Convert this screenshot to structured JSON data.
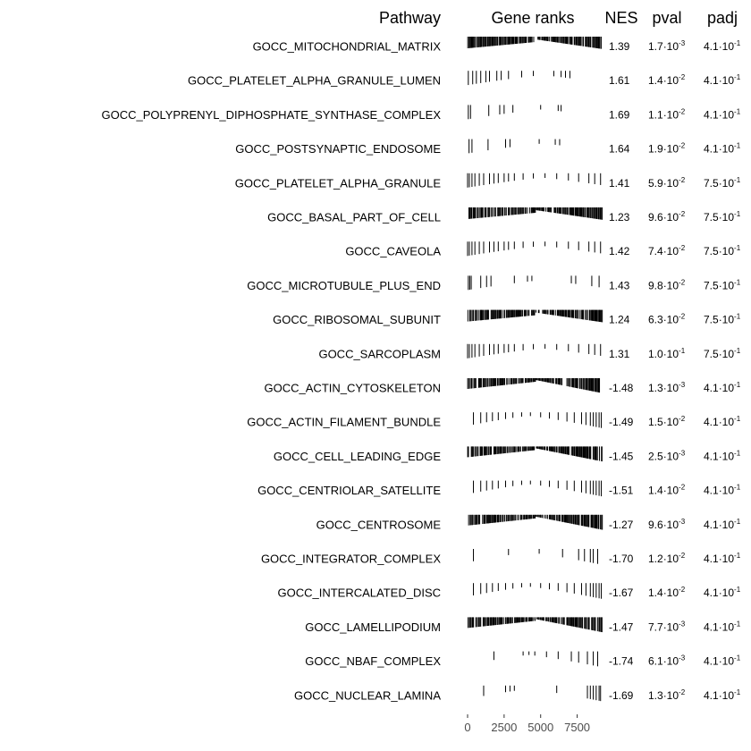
{
  "chart_data": {
    "type": "table",
    "columns": [
      "Pathway",
      "Gene ranks",
      "NES",
      "pval",
      "padj"
    ],
    "x_axis": {
      "ticks": [
        0,
        2500,
        5000,
        7500
      ],
      "xlim": [
        0,
        9300
      ]
    },
    "rows": [
      {
        "pathway": "GOCC_MITOCHONDRIAL_MATRIX",
        "nes": "1.39",
        "pval_m": "1.7",
        "pval_e": "-3",
        "padj_m": "4.1",
        "padj_e": "-1",
        "rank_pattern": "dense-pos"
      },
      {
        "pathway": "GOCC_PLATELET_ALPHA_GRANULE_LUMEN",
        "nes": "1.61",
        "pval_m": "1.4",
        "pval_e": "-2",
        "padj_m": "4.1",
        "padj_e": "-1",
        "rank_pattern": [
          50,
          350,
          600,
          900,
          1250,
          1500,
          2000,
          2300,
          2800,
          3700,
          4500,
          5900,
          6400,
          6700,
          7000
        ]
      },
      {
        "pathway": "GOCC_POLYPRENYL_DIPHOSPHATE_SYNTHASE_COMPLEX",
        "nes": "1.69",
        "pval_m": "1.1",
        "pval_e": "-2",
        "padj_m": "4.1",
        "padj_e": "-1",
        "rank_pattern": [
          50,
          200,
          1450,
          2200,
          2500,
          3100,
          5000,
          6200,
          6400
        ]
      },
      {
        "pathway": "GOCC_POSTSYNAPTIC_ENDOSOME",
        "nes": "1.64",
        "pval_m": "1.9",
        "pval_e": "-2",
        "padj_m": "4.1",
        "padj_e": "-1",
        "rank_pattern": [
          100,
          300,
          1400,
          2600,
          2900,
          4900,
          6000,
          6300
        ]
      },
      {
        "pathway": "GOCC_PLATELET_ALPHA_GRANULE",
        "nes": "1.41",
        "pval_m": "5.9",
        "pval_e": "-2",
        "padj_m": "7.5",
        "padj_e": "-1",
        "rank_pattern": "sparse-pos"
      },
      {
        "pathway": "GOCC_BASAL_PART_OF_CELL",
        "nes": "1.23",
        "pval_m": "9.6",
        "pval_e": "-2",
        "padj_m": "7.5",
        "padj_e": "-1",
        "rank_pattern": "dense-pos"
      },
      {
        "pathway": "GOCC_CAVEOLA",
        "nes": "1.42",
        "pval_m": "7.4",
        "pval_e": "-2",
        "padj_m": "7.5",
        "padj_e": "-1",
        "rank_pattern": "sparse-pos"
      },
      {
        "pathway": "GOCC_MICROTUBULE_PLUS_END",
        "nes": "1.43",
        "pval_m": "9.8",
        "pval_e": "-2",
        "padj_m": "7.5",
        "padj_e": "-1",
        "rank_pattern": [
          50,
          150,
          250,
          900,
          1300,
          1600,
          3200,
          4100,
          4400,
          7100,
          7400,
          8500,
          9000
        ]
      },
      {
        "pathway": "GOCC_RIBOSOMAL_SUBUNIT",
        "nes": "1.24",
        "pval_m": "6.3",
        "pval_e": "-2",
        "padj_m": "7.5",
        "padj_e": "-1",
        "rank_pattern": "dense-pos"
      },
      {
        "pathway": "GOCC_SARCOPLASM",
        "nes": "1.31",
        "pval_m": "1.0",
        "pval_e": "-1",
        "padj_m": "7.5",
        "padj_e": "-1",
        "rank_pattern": "sparse-pos"
      },
      {
        "pathway": "GOCC_ACTIN_CYTOSKELETON",
        "nes": "-1.48",
        "pval_m": "1.3",
        "pval_e": "-3",
        "padj_m": "4.1",
        "padj_e": "-1",
        "rank_pattern": "dense-neg"
      },
      {
        "pathway": "GOCC_ACTIN_FILAMENT_BUNDLE",
        "nes": "-1.49",
        "pval_m": "1.5",
        "pval_e": "-2",
        "padj_m": "4.1",
        "padj_e": "-1",
        "rank_pattern": "sparse-neg"
      },
      {
        "pathway": "GOCC_CELL_LEADING_EDGE",
        "nes": "-1.45",
        "pval_m": "2.5",
        "pval_e": "-3",
        "padj_m": "4.1",
        "padj_e": "-1",
        "rank_pattern": "dense-neg"
      },
      {
        "pathway": "GOCC_CENTRIOLAR_SATELLITE",
        "nes": "-1.51",
        "pval_m": "1.4",
        "pval_e": "-2",
        "padj_m": "4.1",
        "padj_e": "-1",
        "rank_pattern": "sparse-neg"
      },
      {
        "pathway": "GOCC_CENTROSOME",
        "nes": "-1.27",
        "pval_m": "9.6",
        "pval_e": "-3",
        "padj_m": "4.1",
        "padj_e": "-1",
        "rank_pattern": "dense-neg"
      },
      {
        "pathway": "GOCC_INTEGRATOR_COMPLEX",
        "nes": "-1.70",
        "pval_m": "1.2",
        "pval_e": "-2",
        "padj_m": "4.1",
        "padj_e": "-1",
        "rank_pattern": [
          400,
          2800,
          4900,
          6500,
          7600,
          8000,
          8400,
          8600,
          8900
        ]
      },
      {
        "pathway": "GOCC_INTERCALATED_DISC",
        "nes": "-1.67",
        "pval_m": "1.4",
        "pval_e": "-2",
        "padj_m": "4.1",
        "padj_e": "-1",
        "rank_pattern": "sparse-neg"
      },
      {
        "pathway": "GOCC_LAMELLIPODIUM",
        "nes": "-1.47",
        "pval_m": "7.7",
        "pval_e": "-3",
        "padj_m": "4.1",
        "padj_e": "-1",
        "rank_pattern": "dense-neg"
      },
      {
        "pathway": "GOCC_NBAF_COMPLEX",
        "nes": "-1.74",
        "pval_m": "6.1",
        "pval_e": "-3",
        "padj_m": "4.1",
        "padj_e": "-1",
        "rank_pattern": [
          1800,
          3800,
          4200,
          4600,
          5400,
          6200,
          7100,
          7600,
          8200,
          8600,
          8900
        ]
      },
      {
        "pathway": "GOCC_NUCLEAR_LAMINA",
        "nes": "-1.69",
        "pval_m": "1.3",
        "pval_e": "-2",
        "padj_m": "4.1",
        "padj_e": "-1",
        "rank_pattern": [
          1100,
          2600,
          2900,
          3200,
          6100,
          8200,
          8400,
          8600,
          8800,
          9000,
          9100
        ]
      }
    ]
  }
}
